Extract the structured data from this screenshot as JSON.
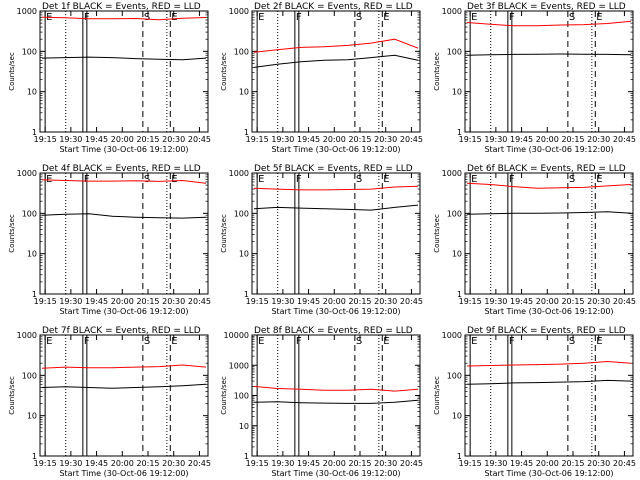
{
  "chart_data": [
    {
      "type": "line",
      "title": "Det 1f BLACK = Events, RED = LLD",
      "xlabel": "Start Time (30-Oct-06 19:12:00)",
      "ylabel": "Counts/sec",
      "scale": "log",
      "ylim": [
        1,
        1000
      ],
      "yticks": [
        "1",
        "10",
        "100",
        "1000"
      ],
      "xticks": [
        "19:15",
        "19:30",
        "19:45",
        "20:00",
        "20:15",
        "20:30",
        "20:45"
      ],
      "markers": [
        {
          "label": "E",
          "x": "19:15",
          "style": "solid"
        },
        {
          "label": "F",
          "x": "19:37",
          "style": "solid"
        },
        {
          "label": "S",
          "x": "20:12",
          "style": "dashed"
        },
        {
          "label": "E",
          "x": "20:28",
          "style": "dashed"
        }
      ],
      "dotted_lines": [
        "19:27",
        "20:26"
      ],
      "series": [
        {
          "name": "LLD",
          "color": "#ff0000",
          "values": [
            700,
            680,
            640,
            640,
            650,
            610,
            660,
            690
          ]
        },
        {
          "name": "Events",
          "color": "#000000",
          "values": [
            68,
            70,
            72,
            70,
            66,
            64,
            62,
            68
          ]
        }
      ]
    },
    {
      "type": "line",
      "title": "Det 2f BLACK = Events, RED = LLD",
      "xlabel": "Start Time (30-Oct-06 19:12:00)",
      "ylabel": "Counts/sec",
      "scale": "log",
      "ylim": [
        1,
        1000
      ],
      "yticks": [
        "1",
        "10",
        "100",
        "1000"
      ],
      "xticks": [
        "19:15",
        "19:30",
        "19:45",
        "20:00",
        "20:15",
        "20:30",
        "20:45"
      ],
      "markers": [
        {
          "label": "E",
          "x": "19:15",
          "style": "solid"
        },
        {
          "label": "F",
          "x": "19:37",
          "style": "solid"
        },
        {
          "label": "S",
          "x": "20:12",
          "style": "dashed"
        },
        {
          "label": "E",
          "x": "20:28",
          "style": "dashed"
        }
      ],
      "dotted_lines": [
        "19:27",
        "20:26"
      ],
      "series": [
        {
          "name": "LLD",
          "color": "#ff0000",
          "values": [
            95,
            110,
            125,
            130,
            140,
            160,
            200,
            120
          ]
        },
        {
          "name": "Events",
          "color": "#000000",
          "values": [
            40,
            48,
            55,
            60,
            62,
            70,
            80,
            60
          ]
        }
      ]
    },
    {
      "type": "line",
      "title": "Det 3f BLACK = Events, RED = LLD",
      "xlabel": "Start Time (30-Oct-06 19:12:00)",
      "ylabel": "Counts/sec",
      "scale": "log",
      "ylim": [
        1,
        1000
      ],
      "yticks": [
        "1",
        "10",
        "100",
        "1000"
      ],
      "xticks": [
        "19:15",
        "19:30",
        "19:45",
        "20:00",
        "20:15",
        "20:30",
        "20:45"
      ],
      "markers": [
        {
          "label": "E",
          "x": "19:15",
          "style": "solid"
        },
        {
          "label": "F",
          "x": "19:37",
          "style": "solid"
        },
        {
          "label": "S",
          "x": "20:12",
          "style": "dashed"
        },
        {
          "label": "E",
          "x": "20:28",
          "style": "dashed"
        }
      ],
      "dotted_lines": [
        "19:27",
        "20:26"
      ],
      "series": [
        {
          "name": "LLD",
          "color": "#ff0000",
          "values": [
            520,
            470,
            430,
            430,
            450,
            460,
            490,
            560
          ]
        },
        {
          "name": "Events",
          "color": "#000000",
          "values": [
            80,
            82,
            84,
            85,
            86,
            85,
            84,
            82
          ]
        }
      ]
    },
    {
      "type": "line",
      "title": "Det 4f BLACK = Events, RED = LLD",
      "xlabel": "Start Time (30-Oct-06 19:12:00)",
      "ylabel": "Counts/sec",
      "scale": "log",
      "ylim": [
        1,
        1000
      ],
      "yticks": [
        "1",
        "10",
        "100",
        "1000"
      ],
      "xticks": [
        "19:15",
        "19:30",
        "19:45",
        "20:00",
        "20:15",
        "20:30",
        "20:45"
      ],
      "markers": [
        {
          "label": "E",
          "x": "19:15",
          "style": "solid"
        },
        {
          "label": "F",
          "x": "19:37",
          "style": "solid"
        },
        {
          "label": "S",
          "x": "20:12",
          "style": "dashed"
        },
        {
          "label": "E",
          "x": "20:28",
          "style": "dashed"
        }
      ],
      "dotted_lines": [
        "19:27",
        "20:26"
      ],
      "series": [
        {
          "name": "LLD",
          "color": "#ff0000",
          "values": [
            680,
            650,
            630,
            630,
            640,
            620,
            650,
            560
          ]
        },
        {
          "name": "Events",
          "color": "#000000",
          "values": [
            90,
            95,
            98,
            85,
            80,
            78,
            76,
            80
          ]
        }
      ]
    },
    {
      "type": "line",
      "title": "Det 5f BLACK = Events, RED = LLD",
      "xlabel": "Start Time (30-Oct-06 19:12:00)",
      "ylabel": "Counts/sec",
      "scale": "log",
      "ylim": [
        1,
        1000
      ],
      "yticks": [
        "1",
        "10",
        "100",
        "1000"
      ],
      "xticks": [
        "19:15",
        "19:30",
        "19:45",
        "20:00",
        "20:15",
        "20:30",
        "20:45"
      ],
      "markers": [
        {
          "label": "E",
          "x": "19:15",
          "style": "solid"
        },
        {
          "label": "F",
          "x": "19:37",
          "style": "solid"
        },
        {
          "label": "S",
          "x": "20:12",
          "style": "dashed"
        },
        {
          "label": "E",
          "x": "20:28",
          "style": "dashed"
        }
      ],
      "dotted_lines": [
        "19:27",
        "20:26"
      ],
      "series": [
        {
          "name": "LLD",
          "color": "#ff0000",
          "values": [
            420,
            400,
            380,
            380,
            390,
            400,
            450,
            470
          ]
        },
        {
          "name": "Events",
          "color": "#000000",
          "values": [
            130,
            140,
            135,
            130,
            125,
            120,
            140,
            160
          ]
        }
      ]
    },
    {
      "type": "line",
      "title": "Det 6f BLACK = Events, RED = LLD",
      "xlabel": "Start Time (30-Oct-06 19:12:00)",
      "ylabel": "Counts/sec",
      "scale": "log",
      "ylim": [
        1,
        1000
      ],
      "yticks": [
        "1",
        "10",
        "100",
        "1000"
      ],
      "xticks": [
        "19:15",
        "19:30",
        "19:45",
        "20:00",
        "20:15",
        "20:30",
        "20:45"
      ],
      "markers": [
        {
          "label": "E",
          "x": "19:15",
          "style": "solid"
        },
        {
          "label": "F",
          "x": "19:37",
          "style": "solid"
        },
        {
          "label": "S",
          "x": "20:12",
          "style": "dashed"
        },
        {
          "label": "E",
          "x": "20:28",
          "style": "dashed"
        }
      ],
      "dotted_lines": [
        "19:27",
        "20:26"
      ],
      "series": [
        {
          "name": "LLD",
          "color": "#ff0000",
          "values": [
            560,
            520,
            460,
            420,
            430,
            440,
            480,
            520
          ]
        },
        {
          "name": "Events",
          "color": "#000000",
          "values": [
            95,
            98,
            100,
            100,
            102,
            105,
            110,
            100
          ]
        }
      ]
    },
    {
      "type": "line",
      "title": "Det 7f BLACK = Events, RED = LLD",
      "xlabel": "Start Time (30-Oct-06 19:12:00)",
      "ylabel": "Counts/sec",
      "scale": "log",
      "ylim": [
        1,
        1000
      ],
      "yticks": [
        "1",
        "10",
        "100",
        "1000"
      ],
      "xticks": [
        "19:15",
        "19:30",
        "19:45",
        "20:00",
        "20:15",
        "20:30",
        "20:45"
      ],
      "markers": [
        {
          "label": "E",
          "x": "19:15",
          "style": "solid"
        },
        {
          "label": "F",
          "x": "19:37",
          "style": "solid"
        },
        {
          "label": "S",
          "x": "20:12",
          "style": "dashed"
        },
        {
          "label": "E",
          "x": "20:28",
          "style": "dashed"
        }
      ],
      "dotted_lines": [
        "19:27",
        "20:26"
      ],
      "series": [
        {
          "name": "LLD",
          "color": "#ff0000",
          "values": [
            150,
            160,
            155,
            155,
            160,
            165,
            180,
            160
          ]
        },
        {
          "name": "Events",
          "color": "#000000",
          "values": [
            50,
            52,
            50,
            48,
            50,
            52,
            55,
            60
          ]
        }
      ]
    },
    {
      "type": "line",
      "title": "Det 8f BLACK = Events, RED = LLD",
      "xlabel": "Start Time (30-Oct-06 19:12:00)",
      "ylabel": "Counts/sec",
      "scale": "log",
      "ylim": [
        1,
        10000
      ],
      "yticks": [
        "1",
        "10",
        "100",
        "1000",
        "10000"
      ],
      "xticks": [
        "19:15",
        "19:30",
        "19:45",
        "20:00",
        "20:15",
        "20:30",
        "20:45"
      ],
      "markers": [
        {
          "label": "E",
          "x": "19:15",
          "style": "solid"
        },
        {
          "label": "F",
          "x": "19:37",
          "style": "solid"
        },
        {
          "label": "S",
          "x": "20:12",
          "style": "dashed"
        },
        {
          "label": "E",
          "x": "20:28",
          "style": "dashed"
        }
      ],
      "dotted_lines": [
        "19:27",
        "20:26"
      ],
      "series": [
        {
          "name": "LLD",
          "color": "#ff0000",
          "values": [
            200,
            170,
            160,
            150,
            150,
            160,
            140,
            160
          ]
        },
        {
          "name": "Events",
          "color": "#000000",
          "values": [
            60,
            62,
            58,
            56,
            55,
            55,
            60,
            70
          ]
        }
      ]
    },
    {
      "type": "line",
      "title": "Det 9f BLACK = Events, RED = LLD",
      "xlabel": "Start Time (30-Oct-06 19:12:00)",
      "ylabel": "Counts/sec",
      "scale": "log",
      "ylim": [
        1,
        1000
      ],
      "yticks": [
        "1",
        "10",
        "100",
        "1000"
      ],
      "xticks": [
        "19:15",
        "19:30",
        "19:45",
        "20:00",
        "20:15",
        "20:30",
        "20:45"
      ],
      "markers": [
        {
          "label": "E",
          "x": "19:15",
          "style": "solid"
        },
        {
          "label": "F",
          "x": "19:37",
          "style": "solid"
        },
        {
          "label": "S",
          "x": "20:12",
          "style": "dashed"
        },
        {
          "label": "E",
          "x": "20:28",
          "style": "dashed"
        }
      ],
      "dotted_lines": [
        "19:27",
        "20:26"
      ],
      "series": [
        {
          "name": "LLD",
          "color": "#ff0000",
          "values": [
            170,
            175,
            180,
            185,
            190,
            200,
            220,
            200
          ]
        },
        {
          "name": "Events",
          "color": "#000000",
          "values": [
            60,
            62,
            65,
            66,
            68,
            70,
            75,
            72
          ]
        }
      ]
    }
  ]
}
